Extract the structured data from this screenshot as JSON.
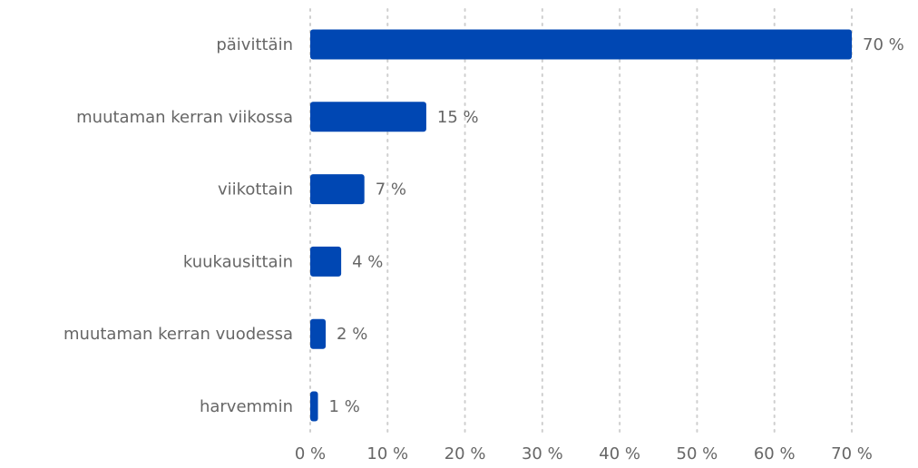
{
  "chart_data": {
    "type": "bar",
    "orientation": "horizontal",
    "categories": [
      "päivittäin",
      "muutaman kerran viikossa",
      "viikottain",
      "kuukausittain",
      "muutaman kerran vuodessa",
      "harvemmin"
    ],
    "values": [
      70,
      15,
      7,
      4,
      2,
      1
    ],
    "value_labels": [
      "70 %",
      "15 %",
      "7 %",
      "4 %",
      "2 %",
      "1 %"
    ],
    "xlim": [
      0,
      70
    ],
    "x_ticks": [
      0,
      10,
      20,
      30,
      40,
      50,
      60,
      70
    ],
    "x_tick_labels": [
      "0 %",
      "10 %",
      "20 %",
      "30 %",
      "40 %",
      "50 %",
      "60 %",
      "70 %"
    ],
    "title": "",
    "xlabel": "",
    "ylabel": "",
    "grid": "vertical dotted",
    "legend": "none",
    "bar_color": "#0047b3"
  }
}
